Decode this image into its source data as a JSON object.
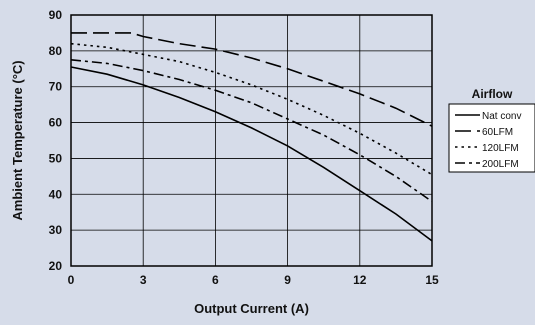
{
  "chart_data": {
    "type": "line",
    "title": "",
    "xlabel": "Output Current (A)",
    "ylabel": "Ambient Temperature (°C)",
    "xlim": [
      0,
      15
    ],
    "ylim": [
      20,
      90
    ],
    "xticks": [
      "0",
      "3",
      "6",
      "9",
      "12",
      "15"
    ],
    "yticks": [
      "20",
      "30",
      "40",
      "50",
      "60",
      "70",
      "80",
      "90"
    ],
    "grid": true,
    "legend": {
      "title": "Airflow",
      "placement": "right"
    },
    "colors": {
      "background": "#d6dce9",
      "line": "#000000",
      "grid": "#000000"
    },
    "series": [
      {
        "name": "Nat conv",
        "dash": "solid",
        "x": [
          0,
          1.5,
          3,
          4.5,
          6,
          7.5,
          9,
          10.5,
          12,
          13.5,
          15
        ],
        "y": [
          75.5,
          73.5,
          70.5,
          67,
          63,
          58.5,
          53.5,
          47.5,
          41,
          34.5,
          27
        ]
      },
      {
        "name": "60LFM",
        "dash": "long-dash",
        "x": [
          0,
          1.5,
          2.5,
          3,
          4.5,
          6,
          7.5,
          9,
          10.5,
          12,
          13.5,
          15
        ],
        "y": [
          85,
          85,
          85,
          84,
          82,
          80.5,
          78,
          75,
          71.5,
          68,
          64,
          59
        ]
      },
      {
        "name": "120LFM",
        "dash": "dot",
        "x": [
          0,
          1.5,
          3,
          4.5,
          6,
          7.5,
          9,
          10.5,
          12,
          13.5,
          15
        ],
        "y": [
          82,
          81,
          79,
          77,
          74,
          70.5,
          66.5,
          62,
          57,
          51.5,
          45.5
        ]
      },
      {
        "name": "200LFM",
        "dash": "dash-dot",
        "x": [
          0,
          1.5,
          3,
          4.5,
          6,
          7.5,
          9,
          10.5,
          12,
          13.5,
          15
        ],
        "y": [
          77.5,
          76.5,
          74.5,
          72,
          69,
          65.5,
          61,
          56.5,
          51,
          45,
          38
        ]
      }
    ]
  }
}
